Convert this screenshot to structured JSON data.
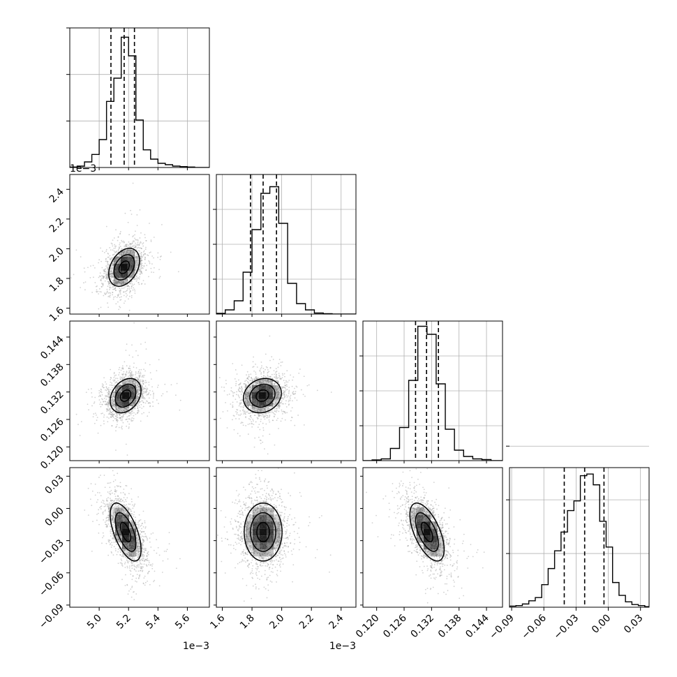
{
  "chart_data": {
    "type": "corner",
    "n_params": 4,
    "params": [
      {
        "range": [
          4.8,
          5.75
        ],
        "ticks": [
          5.0,
          5.2,
          5.4,
          5.6
        ],
        "tick_labels": [
          "5.0",
          "5.2",
          "5.4",
          "5.6"
        ],
        "offset_label": "1e−3",
        "quantiles": [
          5.08,
          5.17,
          5.24
        ],
        "mean": 5.17,
        "sd": 0.07
      },
      {
        "range": [
          1.56,
          2.5
        ],
        "ticks": [
          1.6,
          1.8,
          2.0,
          2.2,
          2.4
        ],
        "tick_labels": [
          "1.6",
          "1.8",
          "2.0",
          "2.2",
          "2.4"
        ],
        "offset_label": "1e−3",
        "quantiles": [
          1.79,
          1.875,
          1.965
        ],
        "mean": 1.875,
        "sd": 0.085
      },
      {
        "range": [
          0.117,
          0.1475
        ],
        "ticks": [
          0.12,
          0.126,
          0.132,
          0.138,
          0.144
        ],
        "tick_labels": [
          "0.120",
          "0.126",
          "0.132",
          "0.138",
          "0.144"
        ],
        "offset_label": "",
        "quantiles": [
          0.1285,
          0.1309,
          0.1335
        ],
        "mean": 0.131,
        "sd": 0.0025
      },
      {
        "range": [
          -0.092,
          0.038
        ],
        "ticks": [
          -0.09,
          -0.06,
          -0.03,
          0.0,
          0.03
        ],
        "tick_labels": [
          "−0.09",
          "−0.06",
          "−0.03",
          "0.00",
          "0.03"
        ],
        "offset_label": "",
        "quantiles": [
          -0.041,
          -0.022,
          -0.004
        ],
        "mean": -0.022,
        "sd": 0.018
      }
    ],
    "histograms": [
      {
        "param": 0,
        "bin_edges": [
          4.8,
          4.85,
          4.9,
          4.95,
          5.0,
          5.05,
          5.1,
          5.15,
          5.2,
          5.25,
          5.3,
          5.35,
          5.4,
          5.45,
          5.5,
          5.55,
          5.6,
          5.65,
          5.7,
          5.75
        ],
        "counts": [
          1,
          3,
          12,
          28,
          60,
          142,
          192,
          280,
          240,
          102,
          38,
          18,
          9,
          6,
          3,
          2,
          1,
          0,
          0
        ],
        "ymax": 300
      },
      {
        "param": 1,
        "bin_edges": [
          1.56,
          1.62,
          1.68,
          1.74,
          1.8,
          1.86,
          1.92,
          1.98,
          2.04,
          2.1,
          2.16,
          2.22,
          2.28,
          2.34,
          2.4,
          2.46,
          2.5
        ],
        "counts": [
          2,
          12,
          38,
          120,
          242,
          346,
          365,
          260,
          88,
          30,
          12,
          3,
          1,
          0,
          0,
          0
        ],
        "ymax": 400
      },
      {
        "param": 2,
        "bin_edges": [
          0.117,
          0.119,
          0.121,
          0.123,
          0.125,
          0.127,
          0.129,
          0.131,
          0.133,
          0.135,
          0.137,
          0.139,
          0.141,
          0.143,
          0.145,
          0.1475
        ],
        "counts": [
          0,
          2,
          5,
          35,
          95,
          230,
          385,
          362,
          220,
          90,
          30,
          12,
          5,
          3,
          0
        ],
        "ymax": 400
      },
      {
        "param": 3,
        "bin_edges": [
          -0.092,
          -0.086,
          -0.08,
          -0.074,
          -0.068,
          -0.062,
          -0.056,
          -0.05,
          -0.044,
          -0.038,
          -0.032,
          -0.026,
          -0.02,
          -0.014,
          -0.008,
          -0.002,
          0.004,
          0.01,
          0.016,
          0.022,
          0.028,
          0.034,
          0.038
        ],
        "counts": [
          2,
          3,
          6,
          12,
          18,
          42,
          72,
          105,
          140,
          180,
          198,
          245,
          248,
          228,
          160,
          112,
          46,
          22,
          10,
          5,
          3,
          1
        ],
        "ymax": 260
      }
    ],
    "pairs": [
      {
        "x_param": 0,
        "y_param": 1,
        "mean": [
          5.17,
          1.875
        ],
        "sd": [
          0.07,
          0.085
        ],
        "corr": 0.35
      },
      {
        "x_param": 0,
        "y_param": 2,
        "mean": [
          5.18,
          0.1312
        ],
        "sd": [
          0.07,
          0.0025
        ],
        "corr": 0.3
      },
      {
        "x_param": 1,
        "y_param": 2,
        "mean": [
          1.87,
          0.1312
        ],
        "sd": [
          0.085,
          0.0025
        ],
        "corr": 0.15
      },
      {
        "x_param": 0,
        "y_param": 3,
        "mean": [
          5.18,
          -0.022
        ],
        "sd": [
          0.07,
          0.018
        ],
        "corr": -0.6
      },
      {
        "x_param": 1,
        "y_param": 3,
        "mean": [
          1.875,
          -0.022
        ],
        "sd": [
          0.085,
          0.018
        ],
        "corr": 0.0
      },
      {
        "x_param": 2,
        "y_param": 3,
        "mean": [
          0.131,
          -0.022
        ],
        "sd": [
          0.0025,
          0.018
        ],
        "corr": -0.6
      }
    ],
    "contour_levels": [
      0.5,
      1.0,
      1.5
    ],
    "grid": true,
    "colors": {
      "line": "#000000",
      "scatter": "#9a9a9a",
      "grid": "#b0b0b0",
      "density": "#000000"
    }
  }
}
